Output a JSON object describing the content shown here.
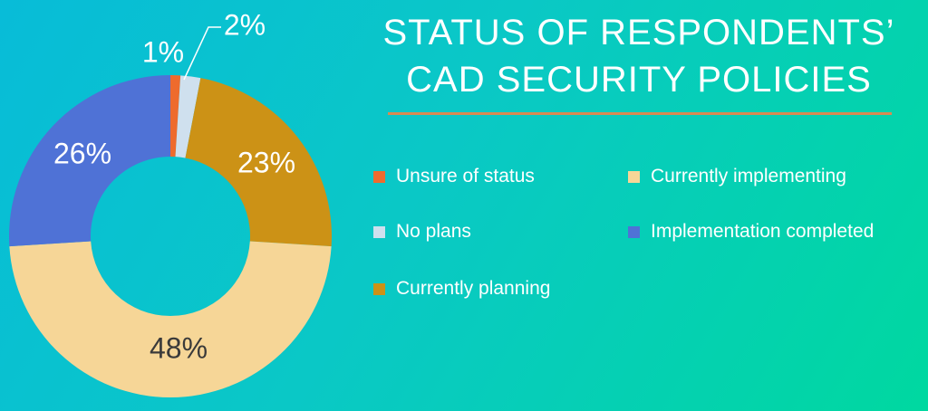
{
  "title_lines": [
    "STATUS OF RESPONDENTS’",
    "CAD SECURITY POLICIES"
  ],
  "chart_data": {
    "type": "pie",
    "donut": true,
    "title": "STATUS OF RESPONDENTS’ CAD SECURITY POLICIES",
    "slices": [
      {
        "label": "Unsure of status",
        "value": 1,
        "display": "1%",
        "color": "#ee6b2d"
      },
      {
        "label": "No plans",
        "value": 2,
        "display": "2%",
        "color": "#cfe0ee"
      },
      {
        "label": "Currently planning",
        "value": 23,
        "display": "23%",
        "color": "#cc9216"
      },
      {
        "label": "Currently implementing",
        "value": 48,
        "display": "48%",
        "color": "#f6d697"
      },
      {
        "label": "Implementation completed",
        "value": 26,
        "display": "26%",
        "color": "#4f72d6"
      }
    ],
    "legend_placement": "right"
  },
  "legend": [
    {
      "label": "Unsure of status",
      "color": "#ee6b2d"
    },
    {
      "label": "Currently implementing",
      "color": "#f6d697"
    },
    {
      "label": "No plans",
      "color": "#cfe0ee"
    },
    {
      "label": "Implementation completed",
      "color": "#4f72d6"
    },
    {
      "label": "Currently planning",
      "color": "#cc9216"
    }
  ]
}
